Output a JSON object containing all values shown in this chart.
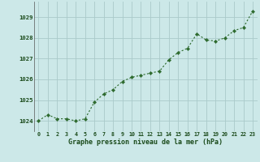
{
  "x": [
    0,
    1,
    2,
    3,
    4,
    5,
    6,
    7,
    8,
    9,
    10,
    11,
    12,
    13,
    14,
    15,
    16,
    17,
    18,
    19,
    20,
    21,
    22,
    23
  ],
  "y": [
    1024.0,
    1024.3,
    1024.1,
    1024.1,
    1024.0,
    1024.1,
    1024.9,
    1025.3,
    1025.5,
    1025.9,
    1026.1,
    1026.2,
    1026.3,
    1026.4,
    1026.95,
    1027.3,
    1027.5,
    1028.2,
    1027.9,
    1027.85,
    1028.0,
    1028.35,
    1028.5,
    1029.3
  ],
  "line_color": "#2d6a2d",
  "marker_color": "#2d6a2d",
  "bg_color": "#cce8e8",
  "grid_color": "#aacaca",
  "xlabel": "Graphe pression niveau de la mer (hPa)",
  "xlabel_color": "#1a4a1a",
  "tick_color": "#1a4a1a",
  "ylim": [
    1023.5,
    1029.75
  ],
  "yticks": [
    1024,
    1025,
    1026,
    1027,
    1028,
    1029
  ],
  "xticks": [
    0,
    1,
    2,
    3,
    4,
    5,
    6,
    7,
    8,
    9,
    10,
    11,
    12,
    13,
    14,
    15,
    16,
    17,
    18,
    19,
    20,
    21,
    22,
    23
  ],
  "xtick_labels": [
    "0",
    "1",
    "2",
    "3",
    "4",
    "5",
    "6",
    "7",
    "8",
    "9",
    "10",
    "11",
    "12",
    "13",
    "14",
    "15",
    "16",
    "17",
    "18",
    "19",
    "20",
    "21",
    "22",
    "23"
  ]
}
